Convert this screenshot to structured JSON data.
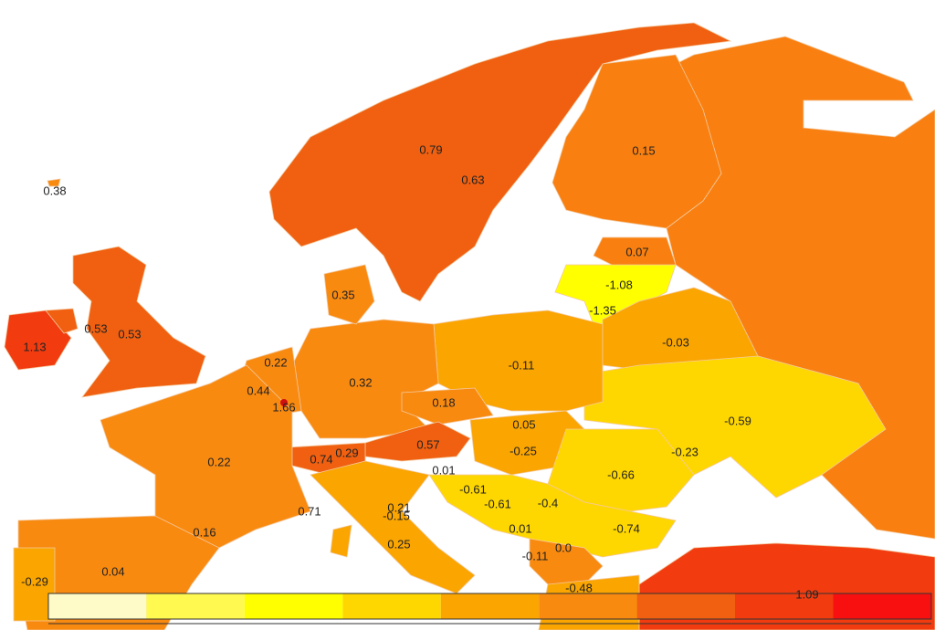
{
  "map": {
    "labels": [
      "0.38",
      "1.13",
      "0.53",
      "0.53",
      "0.79",
      "0.63",
      "0.15",
      "0.07",
      "-1.08",
      "-1.35",
      "0.35",
      "-0.03",
      "0.22",
      "-0.11",
      "0.32",
      "0.44",
      "1.66",
      "0.18",
      "-0.59",
      "0.05",
      "0.57",
      "-0.25",
      "-0.23",
      "0.74",
      "0.29",
      "0.22",
      "0.01",
      "-0.66",
      "-0.61",
      "-0.61",
      "-0.4",
      "0.71",
      "0.21",
      "-0.15",
      "-0.74",
      "0.16",
      "0.01",
      "0.25",
      "-0.11",
      "0.0",
      "-0.29",
      "0.04",
      "-0.48",
      "1.09"
    ],
    "legend_colors": [
      "#fffbc8",
      "#fff950",
      "#ffff00",
      "#ffd700",
      "#fba500",
      "#f98a10",
      "#f06010",
      "#f23c10",
      "#f81010"
    ]
  }
}
